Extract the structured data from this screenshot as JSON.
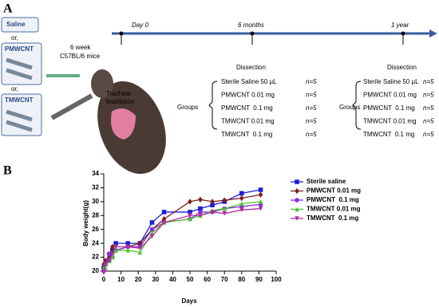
{
  "panel_a": {
    "label": "A",
    "options": [
      "Saline",
      "or,",
      "PMWCNT",
      "or,",
      "TMWCNT"
    ],
    "mice": [
      "6 week",
      "C57BL/6 mice"
    ],
    "procedure": [
      "Tracheal",
      "Instillation"
    ],
    "timeline": [
      {
        "label": "Day 0"
      },
      {
        "label": "6 months",
        "event": "Dissection"
      },
      {
        "label": "1 year",
        "event": "Dissection"
      }
    ],
    "groups_label": "Groups",
    "groups": [
      {
        "name": "Sterile Saline 50 µL",
        "n": "n=5"
      },
      {
        "name": "PMWCNT 0.01 mg",
        "n": "n=5"
      },
      {
        "name": "PMWCNT  0.1 mg",
        "n": "n=5"
      },
      {
        "name": "TMWCNT 0.01 mg",
        "n": "n=5"
      },
      {
        "name": "TMWCNT  0.1 mg",
        "n": "n=5"
      }
    ]
  },
  "chart_data": {
    "type": "line",
    "panel_label": "B",
    "x_label": "Days",
    "y_label": "Body weight(g)",
    "x": [
      0,
      1,
      3,
      5,
      7,
      14,
      21,
      28,
      35,
      50,
      56,
      63,
      70,
      80,
      91
    ],
    "xlim": [
      0,
      100
    ],
    "xticks": [
      0,
      10,
      20,
      30,
      40,
      50,
      60,
      70,
      80,
      90,
      100
    ],
    "ylim": [
      20,
      34
    ],
    "yticks": [
      20,
      22,
      24,
      26,
      28,
      30,
      32,
      34
    ],
    "series": [
      {
        "name": "Sterile saline",
        "color": "#1f1fd6",
        "marker": "square",
        "values": [
          20.5,
          21,
          21.5,
          23,
          24,
          24,
          24,
          27,
          28.5,
          28.5,
          29,
          29.5,
          30,
          31.2,
          31.7
        ]
      },
      {
        "name": "PMWCNT 0.01 mg",
        "color": "#7a1f1f",
        "marker": "diamond",
        "values": [
          21,
          21.5,
          22,
          23.5,
          23,
          23.5,
          24,
          26,
          27.5,
          30,
          30.3,
          30,
          30.2,
          30.5,
          31
        ]
      },
      {
        "name": "PMWCNT  0.1 mg",
        "color": "#8a2be2",
        "marker": "circle",
        "values": [
          20,
          21,
          22.5,
          22,
          23,
          23.5,
          23.5,
          26,
          27,
          27.5,
          28.5,
          28.5,
          29,
          29.3,
          29.6
        ]
      },
      {
        "name": "TMWCNT 0.01 mg",
        "color": "#4fc42c",
        "marker": "triangle",
        "values": [
          20.5,
          20.5,
          21.5,
          22,
          23,
          23,
          22.7,
          25.5,
          27,
          27.5,
          28,
          28.7,
          29,
          29.7,
          30
        ]
      },
      {
        "name": "TMWCNT  0.1 mg",
        "color": "#b0309a",
        "marker": "triangle-down",
        "values": [
          20,
          21,
          21.5,
          22.5,
          23.5,
          23.5,
          23.3,
          25,
          27,
          28,
          28,
          28.5,
          28.3,
          28.8,
          29
        ]
      }
    ]
  }
}
